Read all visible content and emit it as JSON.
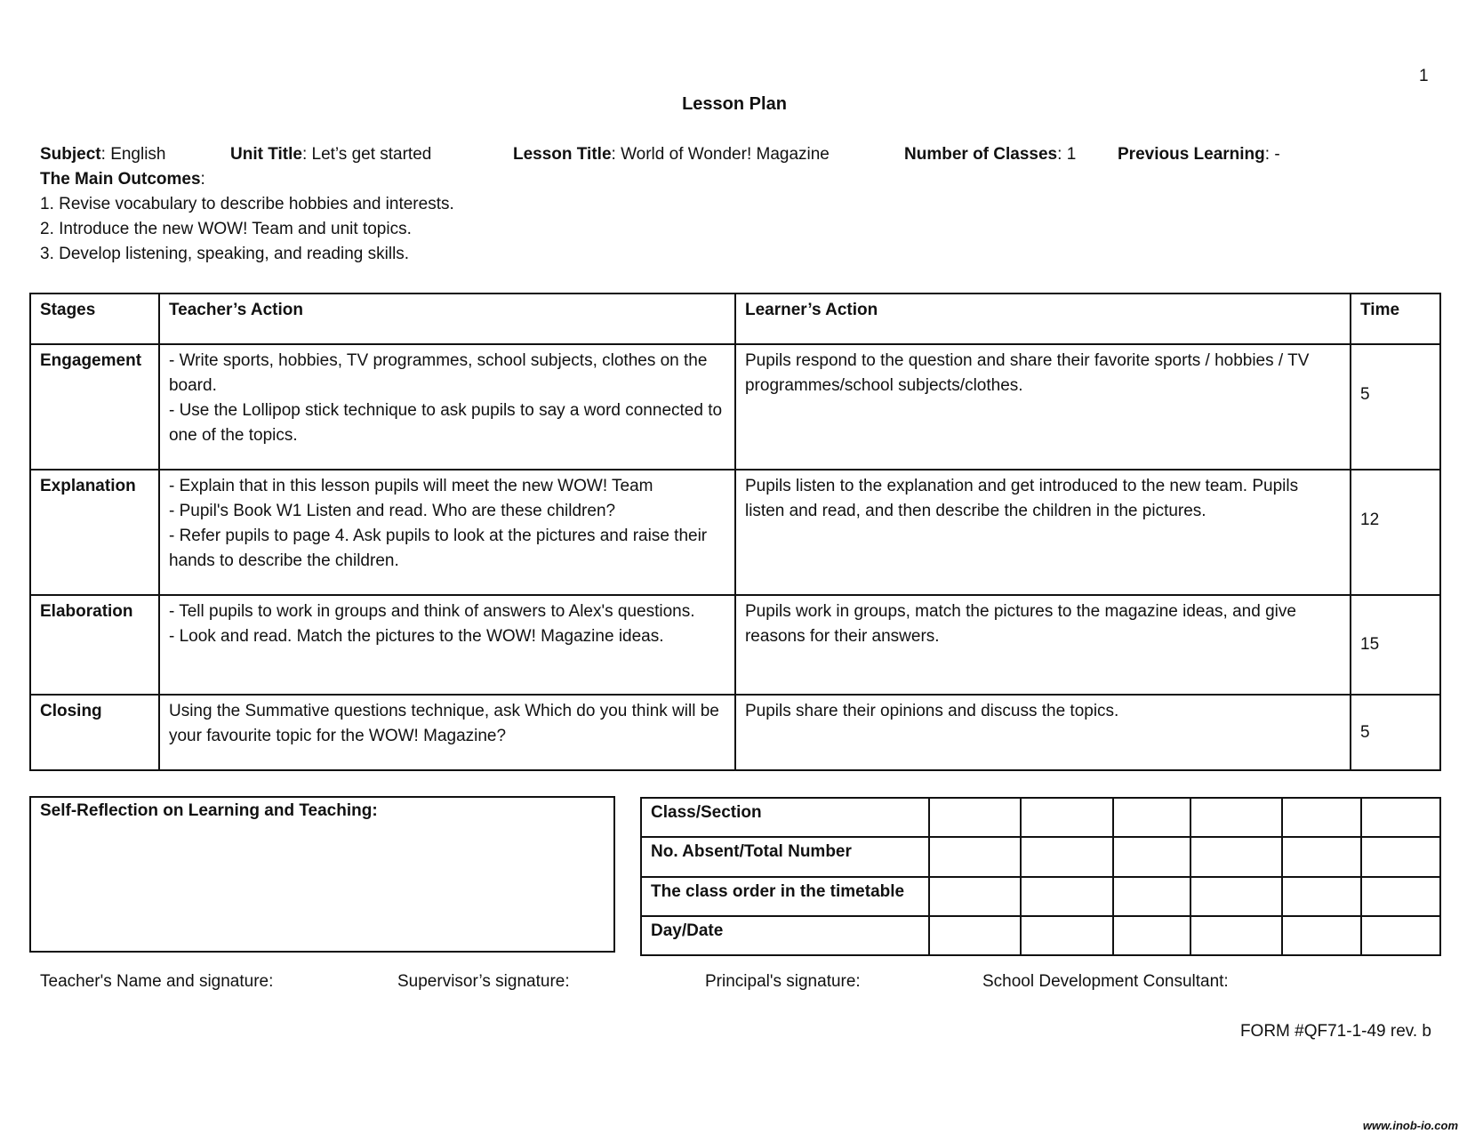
{
  "page_number": "1",
  "title": "Lesson Plan",
  "meta": {
    "subject_label": "Subject",
    "subject": "English",
    "unit_label": "Unit Title",
    "unit": "Let’s get started",
    "lesson_label": "Lesson Title",
    "lesson": "World of Wonder! Magazine",
    "classes_label": "Number of Classes",
    "classes": "1",
    "prev_label": "Previous Learning",
    "prev": "-"
  },
  "outcomes": {
    "label": "The Main Outcomes",
    "items": [
      "1. Revise vocabulary to describe hobbies and interests.",
      "2. Introduce the new WOW! Team and unit topics.",
      "3. Develop listening, speaking, and reading skills."
    ]
  },
  "table": {
    "headers": [
      "Stages",
      "Teacher’s Action",
      "Learner’s Action",
      "Time"
    ],
    "rows": [
      {
        "stage": "Engagement",
        "teacher": [
          "- Write sports, hobbies, TV programmes, school subjects, clothes on the board.",
          "- Use the Lollipop stick technique to ask pupils to say a word connected to one of the topics."
        ],
        "learner": "Pupils respond to the question and share their favorite sports / hobbies / TV programmes/school subjects/clothes.",
        "time": "5"
      },
      {
        "stage": "Explanation",
        "teacher": [
          "- Explain that in this lesson pupils will meet the new WOW! Team",
          "- Pupil's Book W1 Listen and read. Who are these children?",
          "- Refer pupils to page 4. Ask pupils to look at the pictures and raise their hands to describe the children."
        ],
        "learner": "Pupils listen to the explanation and get introduced to the new team. Pupils listen and read, and then describe the children in the pictures.",
        "time": "12"
      },
      {
        "stage": "Elaboration",
        "teacher": [
          "- Tell pupils to work in groups and think of answers to Alex's questions.",
          "- Look and read. Match the pictures to the WOW! Magazine ideas."
        ],
        "learner": "Pupils work in groups, match the pictures to the magazine ideas, and give reasons for their answers.",
        "time": "15"
      },
      {
        "stage": "Closing",
        "teacher": [
          "Using the Summative questions technique, ask Which do you think will be your favourite topic for the WOW! Magazine?"
        ],
        "learner": "Pupils share their opinions and discuss the topics.",
        "time": "5"
      }
    ]
  },
  "reflection_label": "Self-Reflection on Learning and Teaching:",
  "class_table": [
    "Class/Section",
    "No. Absent/Total Number",
    "The class order in the timetable",
    "Day/Date"
  ],
  "signatures": [
    "Teacher's Name and signature:",
    "Supervisor’s signature:",
    "Principal's signature:",
    "School Development Consultant:"
  ],
  "form": "FORM #QF71-1-49 rev. b",
  "watermark": "www.inob-io.com"
}
